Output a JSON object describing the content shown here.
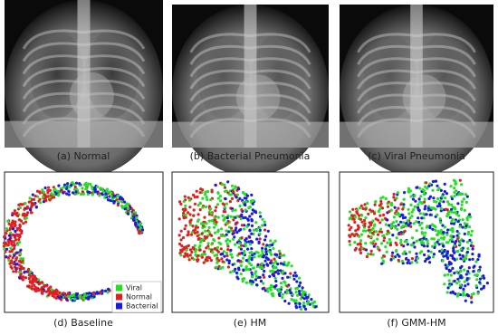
{
  "panels": [
    {
      "caption": "(a) Normal"
    },
    {
      "caption": "(b) Bacterial Pneumonia"
    },
    {
      "caption": "(c) Viral Pneumonia"
    },
    {
      "caption": "(d) Baseline"
    },
    {
      "caption": "(e) HM"
    },
    {
      "caption": "(f) GMM-HM"
    }
  ],
  "legend": {
    "items": [
      {
        "label": "Viral",
        "color": "#22e022"
      },
      {
        "label": "Normal",
        "color": "#e02020"
      },
      {
        "label": "Bacterial",
        "color": "#1a1ae0"
      }
    ]
  }
}
